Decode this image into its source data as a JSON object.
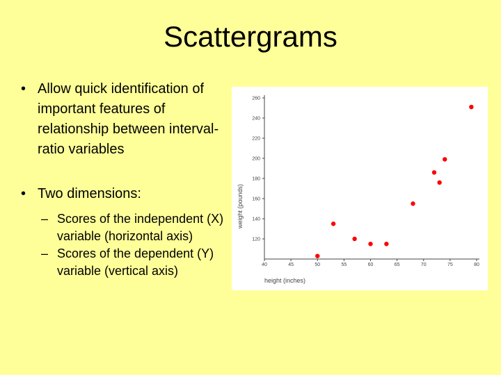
{
  "slide": {
    "title": "Scattergrams",
    "bullets": [
      {
        "text": "Allow quick identification of important features of relationship between interval-ratio variables"
      },
      {
        "text": "Two dimensions:",
        "sub_bullets": [
          "Scores of the independent (X) variable (horizontal axis)",
          "Scores of the dependent (Y) variable (vertical axis)"
        ]
      }
    ]
  },
  "chart_data": {
    "type": "scatter",
    "title": "",
    "xlabel": "height (inches)",
    "ylabel": "weight (pounds)",
    "xlim": [
      40,
      80
    ],
    "ylim": [
      100,
      260
    ],
    "xticks": [
      40,
      45,
      50,
      55,
      60,
      65,
      70,
      75,
      80
    ],
    "yticks": [
      120,
      140,
      160,
      180,
      200,
      220,
      240,
      260
    ],
    "grid": false,
    "marker_color": "#ff0000",
    "points": [
      {
        "x": 50,
        "y": 103
      },
      {
        "x": 53,
        "y": 135
      },
      {
        "x": 57,
        "y": 120
      },
      {
        "x": 60,
        "y": 115
      },
      {
        "x": 63,
        "y": 115
      },
      {
        "x": 68,
        "y": 155
      },
      {
        "x": 72,
        "y": 186
      },
      {
        "x": 73,
        "y": 176
      },
      {
        "x": 74,
        "y": 199
      },
      {
        "x": 79,
        "y": 251
      }
    ]
  }
}
